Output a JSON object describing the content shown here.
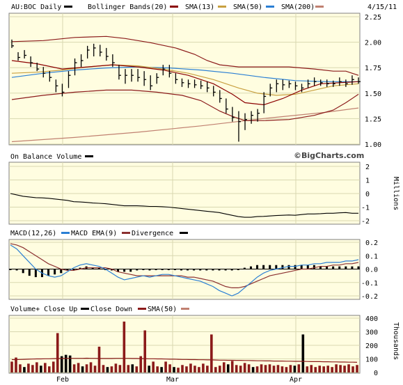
{
  "chart_data": [
    {
      "type": "ohlc",
      "panel": "price",
      "symbol_label": "AU:BOC Daily",
      "date_label": "4/15/11",
      "legend": [
        {
          "label": "Bollinger Bands(20)",
          "color": "#000000"
        },
        {
          "label": "SMA(13)",
          "color": "#8b0000"
        },
        {
          "label": "SMA(50)",
          "color": "#c8a040"
        },
        {
          "label": "SMA(200)",
          "color": "#2a7fd4"
        }
      ],
      "ylim": [
        1.0,
        2.25
      ],
      "yticks": [
        "1.00",
        "1.25",
        "1.50",
        "1.75",
        "2.00",
        "2.25"
      ],
      "watermark": "©BigCharts.com",
      "bars": [
        {
          "h": 2.0,
          "l": 1.92,
          "c": 1.94
        },
        {
          "h": 1.88,
          "l": 1.8,
          "c": 1.83
        },
        {
          "h": 1.9,
          "l": 1.82,
          "c": 1.85
        },
        {
          "h": 1.84,
          "l": 1.74,
          "c": 1.78
        },
        {
          "h": 1.78,
          "l": 1.7,
          "c": 1.72
        },
        {
          "h": 1.74,
          "l": 1.64,
          "c": 1.68
        },
        {
          "h": 1.7,
          "l": 1.6,
          "c": 1.64
        },
        {
          "h": 1.62,
          "l": 1.5,
          "c": 1.56
        },
        {
          "h": 1.58,
          "l": 1.46,
          "c": 1.5
        },
        {
          "h": 1.7,
          "l": 1.54,
          "c": 1.66
        },
        {
          "h": 1.82,
          "l": 1.66,
          "c": 1.78
        },
        {
          "h": 1.86,
          "l": 1.74,
          "c": 1.8
        },
        {
          "h": 1.94,
          "l": 1.82,
          "c": 1.9
        },
        {
          "h": 1.96,
          "l": 1.84,
          "c": 1.92
        },
        {
          "h": 1.95,
          "l": 1.84,
          "c": 1.88
        },
        {
          "h": 1.92,
          "l": 1.8,
          "c": 1.84
        },
        {
          "h": 1.86,
          "l": 1.74,
          "c": 1.78
        },
        {
          "h": 1.76,
          "l": 1.62,
          "c": 1.66
        },
        {
          "h": 1.72,
          "l": 1.58,
          "c": 1.66
        },
        {
          "h": 1.72,
          "l": 1.6,
          "c": 1.66
        },
        {
          "h": 1.72,
          "l": 1.6,
          "c": 1.64
        },
        {
          "h": 1.7,
          "l": 1.56,
          "c": 1.62
        },
        {
          "h": 1.66,
          "l": 1.52,
          "c": 1.56
        },
        {
          "h": 1.68,
          "l": 1.58,
          "c": 1.64
        },
        {
          "h": 1.76,
          "l": 1.66,
          "c": 1.72
        },
        {
          "h": 1.76,
          "l": 1.64,
          "c": 1.68
        },
        {
          "h": 1.68,
          "l": 1.58,
          "c": 1.62
        },
        {
          "h": 1.63,
          "l": 1.55,
          "c": 1.59
        },
        {
          "h": 1.62,
          "l": 1.54,
          "c": 1.58
        },
        {
          "h": 1.62,
          "l": 1.54,
          "c": 1.57
        },
        {
          "h": 1.61,
          "l": 1.53,
          "c": 1.56
        },
        {
          "h": 1.6,
          "l": 1.5,
          "c": 1.54
        },
        {
          "h": 1.56,
          "l": 1.46,
          "c": 1.5
        },
        {
          "h": 1.52,
          "l": 1.4,
          "c": 1.44
        },
        {
          "h": 1.44,
          "l": 1.3,
          "c": 1.34
        },
        {
          "h": 1.36,
          "l": 1.22,
          "c": 1.26
        },
        {
          "h": 1.32,
          "l": 1.03,
          "c": 1.22
        },
        {
          "h": 1.3,
          "l": 1.14,
          "c": 1.24
        },
        {
          "h": 1.32,
          "l": 1.2,
          "c": 1.28
        },
        {
          "h": 1.34,
          "l": 1.22,
          "c": 1.3
        },
        {
          "h": 1.5,
          "l": 1.3,
          "c": 1.46
        },
        {
          "h": 1.58,
          "l": 1.46,
          "c": 1.54
        },
        {
          "h": 1.62,
          "l": 1.5,
          "c": 1.58
        },
        {
          "h": 1.62,
          "l": 1.52,
          "c": 1.57
        },
        {
          "h": 1.61,
          "l": 1.54,
          "c": 1.58
        },
        {
          "h": 1.6,
          "l": 1.52,
          "c": 1.56
        },
        {
          "h": 1.58,
          "l": 1.5,
          "c": 1.54
        },
        {
          "h": 1.62,
          "l": 1.54,
          "c": 1.58
        },
        {
          "h": 1.64,
          "l": 1.56,
          "c": 1.6
        },
        {
          "h": 1.62,
          "l": 1.56,
          "c": 1.59
        },
        {
          "h": 1.62,
          "l": 1.55,
          "c": 1.58
        },
        {
          "h": 1.61,
          "l": 1.55,
          "c": 1.58
        },
        {
          "h": 1.64,
          "l": 1.56,
          "c": 1.6
        },
        {
          "h": 1.62,
          "l": 1.55,
          "c": 1.58
        },
        {
          "h": 1.66,
          "l": 1.57,
          "c": 1.62
        },
        {
          "h": 1.64,
          "l": 1.58,
          "c": 1.6
        }
      ],
      "bb_upper": [
        [
          0,
          1.98
        ],
        [
          5,
          1.99
        ],
        [
          10,
          2.02
        ],
        [
          15,
          2.03
        ],
        [
          18,
          2.01
        ],
        [
          22,
          1.97
        ],
        [
          26,
          1.92
        ],
        [
          29,
          1.86
        ],
        [
          31,
          1.8
        ],
        [
          33,
          1.76
        ],
        [
          36,
          1.74
        ],
        [
          40,
          1.74
        ],
        [
          44,
          1.74
        ],
        [
          48,
          1.72
        ],
        [
          51,
          1.7
        ],
        [
          53,
          1.7
        ],
        [
          55,
          1.66
        ]
      ],
      "bb_lower": [
        [
          0,
          1.43
        ],
        [
          5,
          1.47
        ],
        [
          10,
          1.5
        ],
        [
          15,
          1.52
        ],
        [
          19,
          1.52
        ],
        [
          23,
          1.5
        ],
        [
          27,
          1.47
        ],
        [
          30,
          1.42
        ],
        [
          33,
          1.32
        ],
        [
          35,
          1.27
        ],
        [
          37,
          1.23
        ],
        [
          40,
          1.23
        ],
        [
          44,
          1.24
        ],
        [
          48,
          1.28
        ],
        [
          51,
          1.33
        ],
        [
          53,
          1.4
        ],
        [
          55,
          1.48
        ]
      ],
      "sma13": [
        [
          0,
          1.8
        ],
        [
          4,
          1.77
        ],
        [
          8,
          1.72
        ],
        [
          12,
          1.74
        ],
        [
          16,
          1.76
        ],
        [
          20,
          1.74
        ],
        [
          24,
          1.71
        ],
        [
          28,
          1.66
        ],
        [
          32,
          1.58
        ],
        [
          35,
          1.48
        ],
        [
          37,
          1.4
        ],
        [
          40,
          1.38
        ],
        [
          43,
          1.44
        ],
        [
          46,
          1.52
        ],
        [
          49,
          1.58
        ],
        [
          52,
          1.59
        ],
        [
          55,
          1.6
        ]
      ],
      "sma50": [
        [
          0,
          1.68
        ],
        [
          4,
          1.69
        ],
        [
          8,
          1.71
        ],
        [
          12,
          1.74
        ],
        [
          16,
          1.76
        ],
        [
          20,
          1.75
        ],
        [
          24,
          1.72
        ],
        [
          28,
          1.68
        ],
        [
          32,
          1.62
        ],
        [
          36,
          1.54
        ],
        [
          39,
          1.49
        ],
        [
          42,
          1.47
        ],
        [
          45,
          1.48
        ],
        [
          48,
          1.52
        ],
        [
          51,
          1.56
        ],
        [
          55,
          1.58
        ]
      ],
      "sma200": [
        [
          0,
          1.64
        ],
        [
          5,
          1.68
        ],
        [
          10,
          1.71
        ],
        [
          15,
          1.73
        ],
        [
          20,
          1.74
        ],
        [
          25,
          1.73
        ],
        [
          30,
          1.71
        ],
        [
          35,
          1.68
        ],
        [
          40,
          1.64
        ],
        [
          45,
          1.61
        ],
        [
          50,
          1.6
        ],
        [
          55,
          1.6
        ]
      ],
      "sma_extra": [
        [
          0,
          1.03
        ],
        [
          10,
          1.07
        ],
        [
          20,
          1.12
        ],
        [
          30,
          1.18
        ],
        [
          40,
          1.25
        ],
        [
          50,
          1.31
        ],
        [
          55,
          1.35
        ]
      ]
    },
    {
      "type": "line",
      "panel": "obv",
      "legend": [
        {
          "label": "On Balance Volume",
          "color": "#000000"
        }
      ],
      "ylim": [
        -2,
        2
      ],
      "yticks": [
        "-2",
        "-1",
        "0",
        "1",
        "2"
      ],
      "ylabel": "Millions",
      "values": [
        0.0,
        -0.1,
        -0.2,
        -0.25,
        -0.3,
        -0.32,
        -0.35,
        -0.4,
        -0.45,
        -0.5,
        -0.6,
        -0.62,
        -0.65,
        -0.7,
        -0.72,
        -0.75,
        -0.8,
        -0.85,
        -0.9,
        -0.9,
        -0.9,
        -0.92,
        -0.95,
        -0.95,
        -0.97,
        -1.0,
        -1.05,
        -1.1,
        -1.15,
        -1.2,
        -1.25,
        -1.3,
        -1.35,
        -1.4,
        -1.5,
        -1.6,
        -1.7,
        -1.75,
        -1.75,
        -1.7,
        -1.68,
        -1.65,
        -1.62,
        -1.6,
        -1.58,
        -1.6,
        -1.55,
        -1.5,
        -1.5,
        -1.48,
        -1.45,
        -1.45,
        -1.42,
        -1.4,
        -1.45,
        -1.45
      ]
    },
    {
      "type": "line",
      "panel": "macd",
      "legend": [
        {
          "label": "MACD(12,26)",
          "color": "#000000"
        },
        {
          "label": "MACD EMA(9)",
          "color": "#2a7fd4"
        },
        {
          "label": "Divergence",
          "color": "#8b3030"
        }
      ],
      "ylim": [
        -0.2,
        0.2
      ],
      "yticks": [
        "-0.2",
        "-0.1",
        "0.0",
        "0.1",
        "0.2"
      ],
      "macd": [
        0.18,
        0.15,
        0.1,
        0.05,
        0.0,
        -0.03,
        -0.05,
        -0.06,
        -0.05,
        -0.02,
        0.01,
        0.03,
        0.04,
        0.03,
        0.02,
        0.0,
        -0.03,
        -0.06,
        -0.08,
        -0.07,
        -0.06,
        -0.05,
        -0.06,
        -0.05,
        -0.04,
        -0.04,
        -0.05,
        -0.06,
        -0.07,
        -0.08,
        -0.09,
        -0.11,
        -0.13,
        -0.16,
        -0.18,
        -0.2,
        -0.18,
        -0.14,
        -0.1,
        -0.06,
        -0.03,
        -0.01,
        0.0,
        0.01,
        0.02,
        0.02,
        0.03,
        0.03,
        0.04,
        0.04,
        0.05,
        0.05,
        0.05,
        0.06,
        0.06,
        0.07
      ],
      "signal": [
        0.19,
        0.18,
        0.16,
        0.13,
        0.1,
        0.07,
        0.04,
        0.02,
        0.0,
        -0.01,
        -0.01,
        0.0,
        0.01,
        0.01,
        0.01,
        0.01,
        0.0,
        -0.02,
        -0.03,
        -0.04,
        -0.05,
        -0.05,
        -0.05,
        -0.05,
        -0.05,
        -0.05,
        -0.05,
        -0.05,
        -0.06,
        -0.06,
        -0.07,
        -0.08,
        -0.09,
        -0.11,
        -0.13,
        -0.14,
        -0.14,
        -0.13,
        -0.11,
        -0.09,
        -0.07,
        -0.05,
        -0.04,
        -0.03,
        -0.02,
        -0.01,
        0.0,
        0.0,
        0.01,
        0.02,
        0.02,
        0.03,
        0.03,
        0.04,
        0.04,
        0.05
      ],
      "divergence": [
        0.0,
        -0.01,
        -0.03,
        -0.05,
        -0.06,
        -0.06,
        -0.05,
        -0.04,
        -0.03,
        -0.01,
        0.0,
        0.01,
        0.02,
        0.01,
        0.01,
        0.0,
        -0.01,
        -0.02,
        -0.02,
        -0.02,
        -0.01,
        0.0,
        -0.01,
        0.0,
        0.0,
        0.0,
        0.0,
        -0.01,
        -0.01,
        -0.01,
        -0.01,
        -0.01,
        -0.01,
        -0.01,
        -0.01,
        -0.01,
        0.0,
        0.01,
        0.02,
        0.03,
        0.03,
        0.03,
        0.03,
        0.03,
        0.03,
        0.03,
        0.03,
        0.03,
        0.03,
        0.02,
        0.02,
        0.02,
        0.02,
        0.02,
        0.02,
        0.02
      ]
    },
    {
      "type": "bar",
      "panel": "volume",
      "legend": [
        {
          "label": "Volume+ Close Up",
          "color": "#8b1a1a"
        },
        {
          "label": "Close Down",
          "color": "#000000"
        },
        {
          "label": "SMA(50)",
          "color": "#8b1a1a"
        }
      ],
      "ylim": [
        0,
        400
      ],
      "yticks": [
        "0",
        "100",
        "200",
        "300",
        "400"
      ],
      "ylabel": "Thousands",
      "volume": [
        80,
        110,
        60,
        40,
        65,
        55,
        75,
        50,
        70,
        45,
        80,
        290,
        120,
        130,
        125,
        60,
        70,
        45,
        60,
        75,
        50,
        190,
        55,
        40,
        45,
        65,
        55,
        375,
        55,
        60,
        45,
        120,
        310,
        50,
        80,
        45,
        40,
        80,
        60,
        40,
        35,
        55,
        45,
        65,
        50,
        40,
        65,
        50,
        280,
        40,
        50,
        75,
        60,
        85,
        55,
        50,
        70,
        60,
        40,
        45,
        60,
        55,
        60,
        50,
        55,
        45,
        40,
        55,
        50,
        60,
        280,
        45,
        55,
        40,
        50,
        45,
        50,
        40,
        60,
        55,
        50,
        60,
        45,
        55
      ],
      "up": [
        1,
        1,
        1,
        0,
        1,
        1,
        1,
        0,
        1,
        1,
        1,
        1,
        0,
        0,
        0,
        1,
        1,
        0,
        1,
        1,
        1,
        1,
        1,
        0,
        1,
        1,
        1,
        1,
        1,
        0,
        1,
        1,
        1,
        0,
        1,
        1,
        0,
        1,
        1,
        0,
        1,
        1,
        1,
        1,
        1,
        1,
        1,
        1,
        1,
        1,
        1,
        1,
        0,
        1,
        1,
        1,
        1,
        1,
        0,
        1,
        1,
        1,
        1,
        1,
        1,
        1,
        1,
        1,
        0,
        1,
        0,
        1,
        1,
        1,
        1,
        1,
        1,
        1,
        1,
        1,
        1,
        1,
        1,
        1
      ],
      "sma50": [
        95,
        95,
        96,
        97,
        98,
        99,
        100,
        100,
        101,
        101,
        102,
        103,
        103,
        104,
        104,
        104,
        104,
        104,
        105,
        104,
        104,
        103,
        103,
        103,
        103,
        104,
        104,
        104,
        104,
        103,
        103,
        102,
        102,
        101,
        101,
        100,
        100,
        99,
        98,
        98,
        97,
        96,
        96,
        95,
        95,
        94,
        94,
        93,
        93,
        92,
        91,
        91,
        90,
        90,
        89,
        89,
        88,
        88,
        87,
        86,
        86,
        85,
        85,
        84,
        84,
        84,
        83,
        83,
        82,
        82,
        82,
        81,
        80,
        80,
        80,
        79,
        79,
        78,
        78,
        77,
        77,
        76,
        76,
        75
      ],
      "x_tick_labels": [
        "Feb",
        "Mar",
        "Apr"
      ]
    }
  ]
}
